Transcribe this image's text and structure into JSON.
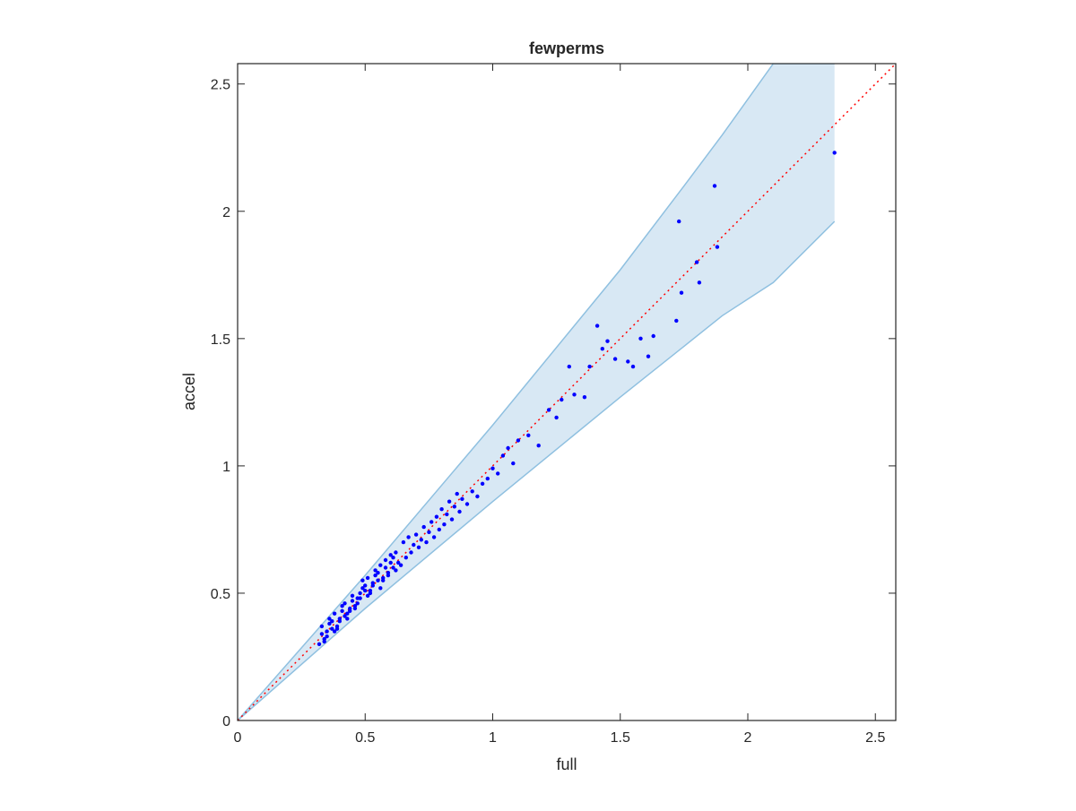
{
  "chart_data": {
    "type": "scatter",
    "title": "fewperms",
    "xlabel": "full",
    "ylabel": "accel",
    "xlim": [
      0,
      2.58
    ],
    "ylim": [
      0,
      2.58
    ],
    "xticks": [
      0,
      0.5,
      1,
      1.5,
      2,
      2.5
    ],
    "yticks": [
      0,
      0.5,
      1,
      1.5,
      2,
      2.5
    ],
    "xtick_labels": [
      "0",
      "0.5",
      "1",
      "1.5",
      "2",
      "2.5"
    ],
    "ytick_labels": [
      "0",
      "0.5",
      "1",
      "1.5",
      "2",
      "2.5"
    ],
    "grid": false,
    "legend": "none",
    "colors": {
      "points": "#0000ff",
      "band_fill": "#d8e8f4",
      "band_edge": "#8fc0e0",
      "reference_line": "#ff0000",
      "axes": "#262626"
    },
    "reference_line": {
      "style": "dotted",
      "x": [
        0,
        2.58
      ],
      "y": [
        0,
        2.58
      ]
    },
    "band": {
      "x": [
        0,
        0.5,
        1.0,
        1.5,
        1.75,
        1.9,
        2.1,
        2.34
      ],
      "upper": [
        0,
        0.57,
        1.16,
        1.77,
        2.1,
        2.3,
        2.58,
        2.58
      ],
      "lower": [
        0,
        0.44,
        0.86,
        1.27,
        1.47,
        1.59,
        1.72,
        1.96
      ]
    },
    "series": [
      {
        "x": [
          0.32,
          0.33,
          0.34,
          0.33,
          0.35,
          0.34,
          0.36,
          0.35,
          0.37,
          0.36,
          0.38,
          0.37,
          0.39,
          0.38,
          0.4,
          0.39,
          0.41,
          0.4,
          0.42,
          0.41,
          0.43,
          0.42,
          0.44,
          0.43,
          0.45,
          0.44,
          0.46,
          0.45,
          0.47,
          0.46,
          0.48,
          0.47,
          0.49,
          0.48,
          0.5,
          0.49,
          0.51,
          0.5,
          0.52,
          0.51,
          0.53,
          0.52,
          0.54,
          0.53,
          0.55,
          0.54,
          0.56,
          0.55,
          0.57,
          0.56,
          0.58,
          0.57,
          0.59,
          0.58,
          0.6,
          0.59,
          0.61,
          0.6,
          0.62,
          0.61,
          0.63,
          0.62,
          0.64,
          0.65,
          0.66,
          0.67,
          0.68,
          0.69,
          0.7,
          0.71,
          0.72,
          0.73,
          0.74,
          0.75,
          0.76,
          0.77,
          0.78,
          0.79,
          0.8,
          0.81,
          0.82,
          0.83,
          0.84,
          0.85,
          0.86,
          0.87,
          0.88,
          0.9,
          0.92,
          0.94,
          0.96,
          0.98,
          1.0,
          1.02,
          1.04,
          1.06,
          1.08,
          1.1,
          1.14,
          1.18,
          1.22,
          1.25,
          1.27,
          1.3,
          1.32,
          1.36,
          1.38,
          1.41,
          1.43,
          1.45,
          1.48,
          1.53,
          1.55,
          1.58,
          1.61,
          1.63,
          1.72,
          1.73,
          1.74,
          1.8,
          1.81,
          1.87,
          1.88,
          2.34
        ],
        "y": [
          0.3,
          0.34,
          0.32,
          0.37,
          0.35,
          0.31,
          0.38,
          0.33,
          0.36,
          0.4,
          0.35,
          0.39,
          0.37,
          0.42,
          0.4,
          0.36,
          0.43,
          0.39,
          0.41,
          0.45,
          0.42,
          0.46,
          0.44,
          0.4,
          0.47,
          0.43,
          0.45,
          0.49,
          0.48,
          0.44,
          0.5,
          0.46,
          0.52,
          0.48,
          0.51,
          0.55,
          0.49,
          0.53,
          0.5,
          0.56,
          0.54,
          0.51,
          0.57,
          0.53,
          0.55,
          0.59,
          0.52,
          0.58,
          0.56,
          0.61,
          0.6,
          0.55,
          0.58,
          0.63,
          0.62,
          0.57,
          0.6,
          0.65,
          0.59,
          0.64,
          0.62,
          0.66,
          0.61,
          0.7,
          0.64,
          0.72,
          0.66,
          0.69,
          0.73,
          0.68,
          0.71,
          0.76,
          0.7,
          0.74,
          0.78,
          0.72,
          0.8,
          0.75,
          0.83,
          0.77,
          0.81,
          0.86,
          0.79,
          0.84,
          0.89,
          0.82,
          0.87,
          0.85,
          0.9,
          0.88,
          0.93,
          0.95,
          0.99,
          0.97,
          1.04,
          1.07,
          1.01,
          1.1,
          1.12,
          1.08,
          1.22,
          1.19,
          1.26,
          1.39,
          1.28,
          1.27,
          1.39,
          1.55,
          1.46,
          1.49,
          1.42,
          1.41,
          1.39,
          1.5,
          1.43,
          1.51,
          1.57,
          1.96,
          1.68,
          1.8,
          1.72,
          2.1,
          1.86,
          2.23
        ]
      }
    ]
  }
}
